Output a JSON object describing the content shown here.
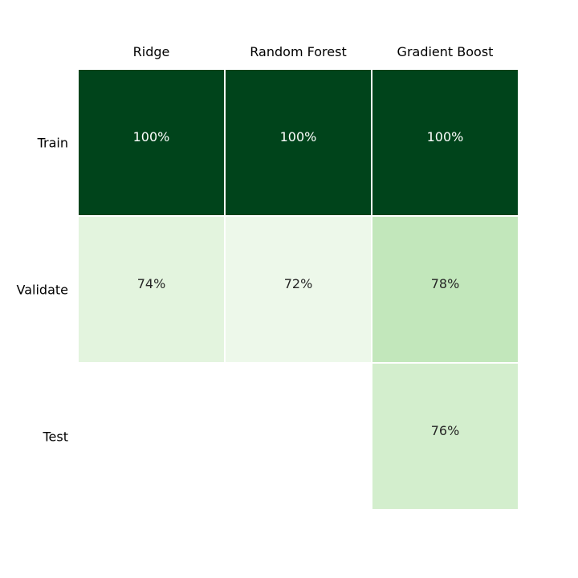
{
  "chart_data": {
    "type": "heatmap",
    "columns": [
      "Ridge",
      "Random Forest",
      "Gradient Boost"
    ],
    "rows": [
      "Train",
      "Validate",
      "Test"
    ],
    "values": [
      [
        100,
        100,
        100
      ],
      [
        74,
        72,
        78
      ],
      [
        null,
        null,
        76
      ]
    ],
    "cell_labels": [
      [
        "100%",
        "100%",
        "100%"
      ],
      [
        "74%",
        "72%",
        "78%"
      ],
      [
        "",
        "",
        "76%"
      ]
    ],
    "colormap": "Greens",
    "color_low": "#f7fcf5",
    "color_high": "#00441b",
    "text_dark": "#262626",
    "text_light": "#ffffff",
    "grid": false,
    "legend": "none"
  }
}
